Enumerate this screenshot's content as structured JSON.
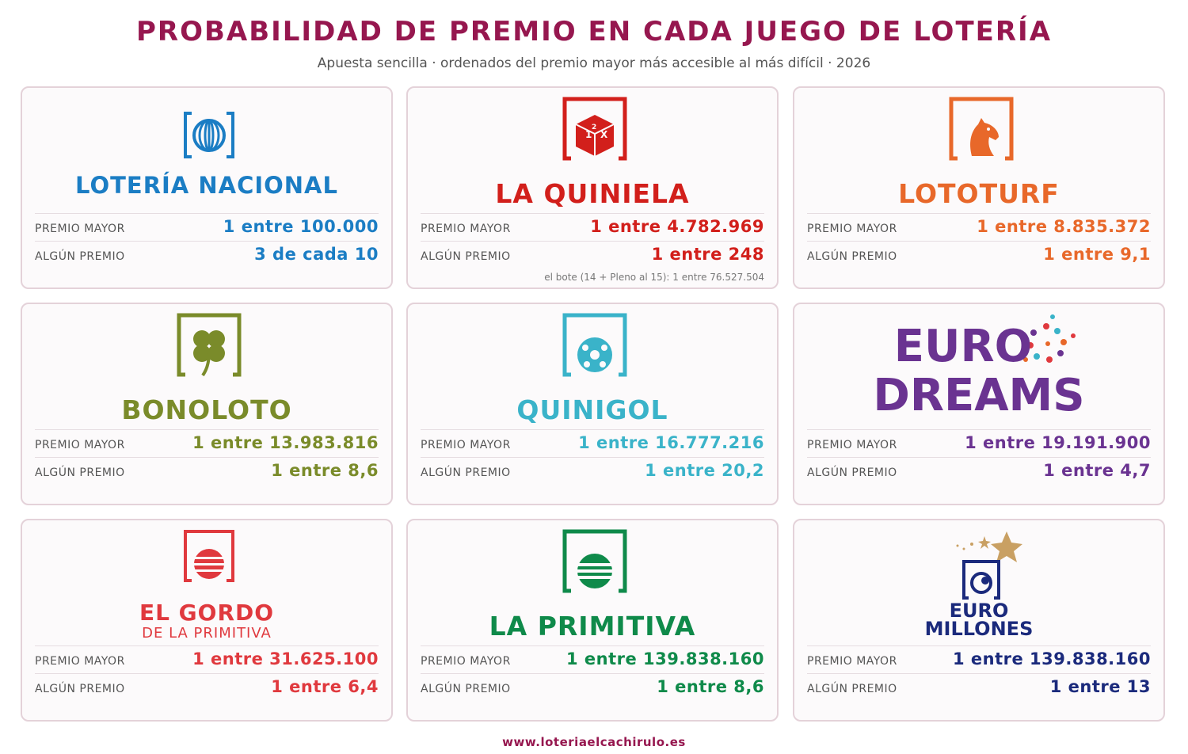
{
  "header": {
    "title": "PROBABILIDAD DE PREMIO EN CADA JUEGO DE LOTERÍA",
    "subtitle": "Apuesta sencilla · ordenados del premio mayor más accesible al más difícil · 2026"
  },
  "labels": {
    "premio_mayor": "PREMIO MAYOR",
    "algun_premio": "ALGÚN PREMIO"
  },
  "games": [
    {
      "name": "LOTERÍA NACIONAL",
      "color": "#1b7dc4",
      "icon": "loteria-nacional-globe-icon",
      "premio_mayor": "1 entre 100.000",
      "algun_premio": "3 de cada 10"
    },
    {
      "name": "LA QUINIELA",
      "color": "#d21f1b",
      "icon": "quiniela-dice-icon",
      "premio_mayor": "1 entre 4.782.969",
      "algun_premio": "1 entre 248",
      "note": "el bote (14 + Pleno al 15): 1 entre 76.527.504"
    },
    {
      "name": "LOTOTURF",
      "color": "#e8682a",
      "icon": "horse-head-icon",
      "premio_mayor": "1 entre 8.835.372",
      "algun_premio": "1 entre 9,1"
    },
    {
      "name": "BONOLOTO",
      "color": "#7a8b2a",
      "icon": "clover-icon",
      "premio_mayor": "1 entre 13.983.816",
      "algun_premio": "1 entre 8,6"
    },
    {
      "name": "QUINIGOL",
      "color": "#3ab3c9",
      "icon": "football-icon",
      "premio_mayor": "1 entre 16.777.216",
      "algun_premio": "1 entre 20,2"
    },
    {
      "name": "EURO",
      "name2": "DREAMS",
      "color": "#6a3391",
      "icon": "eurodreams-logo",
      "premio_mayor": "1 entre 19.191.900",
      "algun_premio": "1 entre 4,7"
    },
    {
      "name": "EL GORDO",
      "name2": "DE LA PRIMITIVA",
      "color": "#e0393e",
      "icon": "el-gordo-ball-icon",
      "premio_mayor": "1 entre 31.625.100",
      "algun_premio": "1 entre 6,4"
    },
    {
      "name": "LA PRIMITIVA",
      "color": "#0f8a4a",
      "icon": "primitiva-ball-icon",
      "premio_mayor": "1 entre 139.838.160",
      "algun_premio": "1 entre 8,6"
    },
    {
      "name": "EURO",
      "name2": "MILLONES",
      "color": "#1b2a7c",
      "icon": "euromillones-star-icon",
      "premio_mayor": "1 entre 139.838.160",
      "algun_premio": "1 entre 13"
    }
  ],
  "footer": {
    "url": "www.loteriaelcachirulo.es"
  }
}
